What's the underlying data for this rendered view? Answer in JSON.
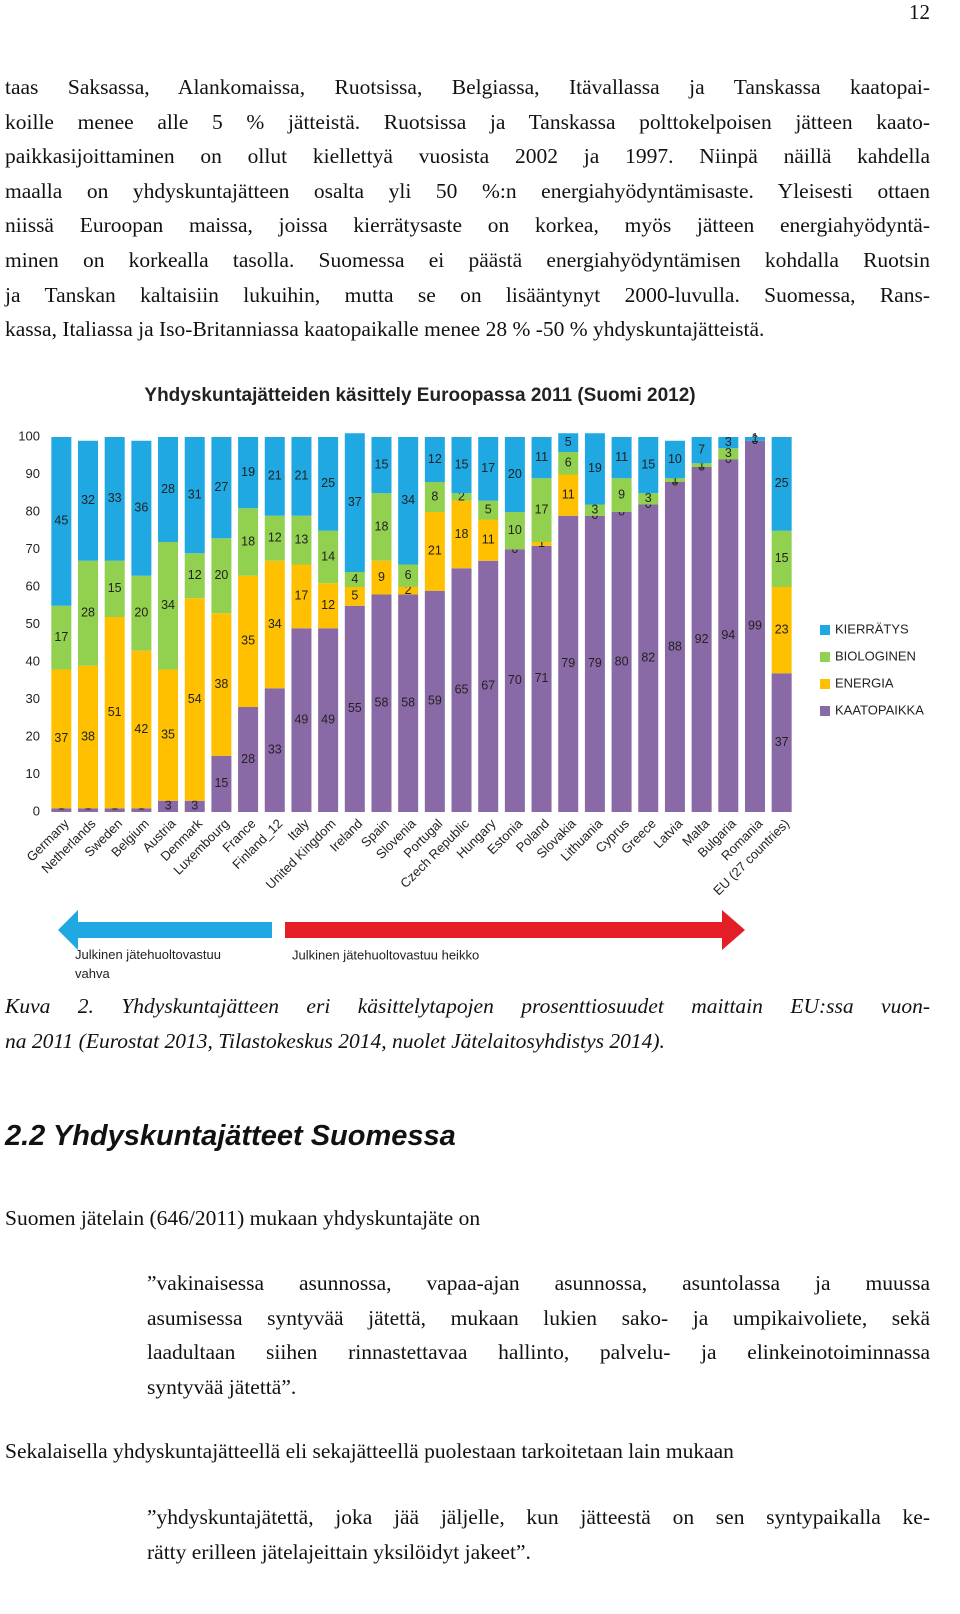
{
  "page_number": "12",
  "intro": {
    "lines": [
      "taas Saksassa, Alankomaissa, Ruotsissa, Belgiassa, Itävallassa ja Tanskassa kaatopai-",
      "koille menee alle 5 % jätteistä. Ruotsissa ja Tanskassa polttokelpoisen jätteen kaato-",
      "paikkasijoittaminen on ollut kiellettyä vuosista 2002 ja 1997. Niinpä näillä kahdella",
      "maalla on yhdyskuntajätteen osalta yli 50 %:n energiahyödyntämisaste. Yleisesti ottaen",
      "niissä Euroopan maissa, joissa kierrätysaste on korkea, myös jätteen energiahyödyntä-",
      "minen on korkealla tasolla. Suomessa ei päästä energiahyödyntämisen kohdalla Ruotsin",
      "ja Tanskan kaltaisiin lukuihin, mutta se on lisääntynyt 2000-luvulla. Suomessa, Rans-",
      "kassa, Italiassa ja Iso-Britanniassa kaatopaikalle menee 28 % -50 % yhdyskuntajätteistä."
    ]
  },
  "chart_data": {
    "type": "stacked_bar",
    "title": "Yhdyskuntajätteiden käsittely Euroopassa 2011 (Suomi 2012)",
    "categories": [
      "Germany",
      "Netherlands",
      "Sweden",
      "Belgium",
      "Austria",
      "Denmark",
      "Luxembourg",
      "France",
      "Finland_12",
      "Italy",
      "United Kingdom",
      "Ireland",
      "Spain",
      "Slovenia",
      "Portugal",
      "Czech Republic",
      "Hungary",
      "Estonia",
      "Poland",
      "Slovakia",
      "Lithuania",
      "Cyprus",
      "Greece",
      "Latvia",
      "Malta",
      "Bulgaria",
      "Romania",
      "EU (27 countries)"
    ],
    "series": [
      {
        "name": "KAATOPAIKKA",
        "color": "#8a6aa6",
        "values": [
          1,
          1,
          1,
          1,
          3,
          3,
          15,
          28,
          33,
          49,
          49,
          55,
          58,
          58,
          59,
          65,
          67,
          70,
          71,
          79,
          79,
          80,
          82,
          88,
          92,
          94,
          99,
          37
        ]
      },
      {
        "name": "ENERGIA",
        "color": "#ffc000",
        "values": [
          37,
          38,
          51,
          42,
          35,
          54,
          38,
          35,
          34,
          17,
          12,
          5,
          9,
          2,
          21,
          18,
          11,
          0,
          1,
          11,
          0,
          0,
          0,
          0,
          0,
          0,
          0,
          23
        ]
      },
      {
        "name": "BIOLOGINEN",
        "color": "#92d050",
        "values": [
          17,
          28,
          15,
          20,
          34,
          12,
          20,
          18,
          12,
          13,
          14,
          4,
          18,
          6,
          8,
          2,
          5,
          10,
          17,
          6,
          3,
          9,
          3,
          1,
          1,
          3,
          0,
          15
        ]
      },
      {
        "name": "KIERRÄTYS",
        "color": "#1fa8e2",
        "values": [
          45,
          32,
          33,
          36,
          28,
          31,
          27,
          19,
          21,
          21,
          25,
          37,
          15,
          34,
          12,
          15,
          17,
          20,
          11,
          5,
          19,
          11,
          15,
          10,
          7,
          3,
          1,
          25
        ]
      }
    ],
    "ylim": [
      0,
      100
    ],
    "yticks": [
      0,
      10,
      20,
      30,
      40,
      50,
      60,
      70,
      80,
      90,
      100
    ],
    "grid": false,
    "legend": "right",
    "annotations": [
      {
        "text": "Julkinen jätehuoltovastuu vahva",
        "color": "#1fa8e2"
      },
      {
        "text": "Julkinen jätehuoltovastuu heikko",
        "color": "#e41e26"
      }
    ]
  },
  "caption": {
    "lines": [
      "Kuva 2. Yhdyskuntajätteen eri käsittelytapojen prosenttiosuudet maittain EU:ssa vuon-",
      "na 2011 (Eurostat 2013, Tilastokeskus 2014, nuolet Jätelaitosyhdistys 2014)."
    ]
  },
  "heading": "2.2 Yhdyskuntajätteet Suomessa",
  "para2": "Suomen jätelain (646/2011) mukaan yhdyskuntajäte on",
  "quote1": {
    "lines": [
      "”vakinaisessa asunnossa, vapaa-ajan asunnossa, asuntolassa ja muussa",
      "asumisessa syntyvää jätettä, mukaan lukien sako- ja umpikaivoliete, sekä",
      "laadultaan siihen rinnastettavaa hallinto, palvelu- ja elinkeinotoiminnassa",
      "syntyvää jätettä”."
    ]
  },
  "para3": "Sekalaisella yhdyskuntajätteellä eli sekajätteellä puolestaan tarkoitetaan lain mukaan",
  "quote2": {
    "lines": [
      "”yhdyskuntajätettä, joka jää jäljelle, kun jätteestä on sen syntypaikalla ke-",
      "rätty erilleen jätelajeittain yksilöidyt jakeet”."
    ]
  }
}
